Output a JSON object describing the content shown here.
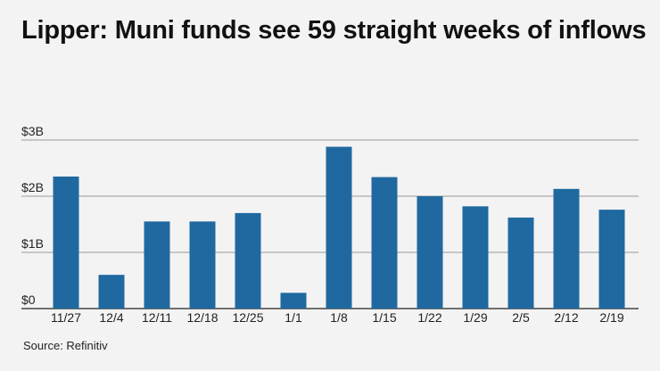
{
  "title": "Lipper: Muni funds see 59 straight weeks of inflows",
  "source": "Source: Refinitiv",
  "chart_data": {
    "type": "bar",
    "title": "Lipper: Muni funds see 59 straight weeks of inflows",
    "categories": [
      "11/27",
      "12/4",
      "12/11",
      "12/18",
      "12/25",
      "1/1",
      "1/8",
      "1/15",
      "1/22",
      "1/29",
      "2/5",
      "2/12",
      "2/19"
    ],
    "values": [
      2.35,
      0.6,
      1.55,
      1.55,
      1.7,
      0.28,
      2.88,
      2.34,
      2.0,
      1.82,
      1.62,
      2.13,
      1.76
    ],
    "yticks": [
      0,
      1,
      2,
      3
    ],
    "ytick_labels": [
      "$0",
      "$1B",
      "$2B",
      "$3B"
    ],
    "ylim": [
      0,
      3
    ],
    "xlabel": "",
    "ylabel": "",
    "grid": true,
    "bar_color": "#1f69a0",
    "grid_color": "#9a9a9a"
  }
}
